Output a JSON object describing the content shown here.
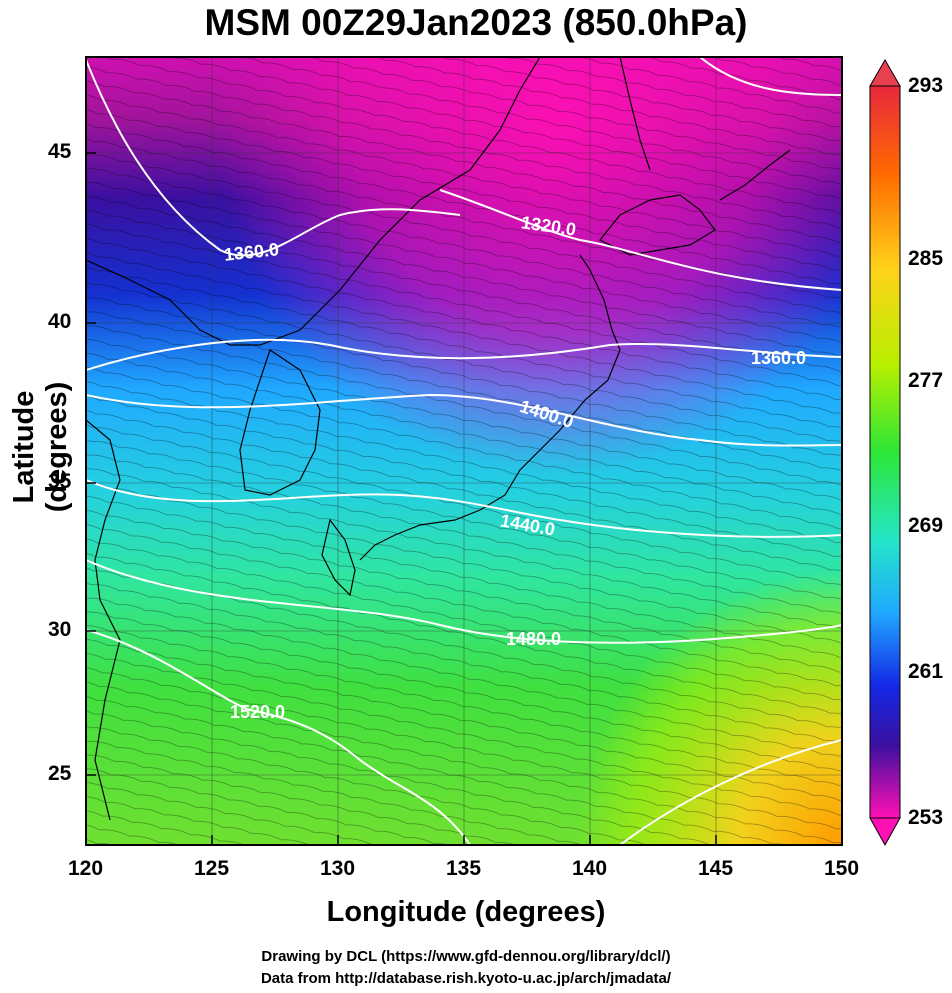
{
  "title": "MSM 00Z29Jan2023 (850.0hPa)",
  "xlabel": "Longitude (degrees)",
  "ylabel": "Latitude  (degrees)",
  "credits": [
    "Drawing by DCL (https://www.gfd-dennou.org/library/dcl/)",
    "Data from http://database.rish.kyoto-u.ac.jp/arch/jmadata/"
  ],
  "x_ticks": [
    "120",
    "125",
    "130",
    "135",
    "140",
    "145",
    "150"
  ],
  "y_ticks": [
    "45",
    "40",
    "35",
    "30",
    "25"
  ],
  "colorbar": {
    "ticks": [
      "293",
      "285",
      "277",
      "269",
      "261",
      "253"
    ],
    "colors_top_to_bottom": [
      "#e8283c",
      "#ff6a00",
      "#ffd21a",
      "#b8f000",
      "#2de636",
      "#25e6c8",
      "#20a8ff",
      "#1428e6",
      "#3a10a0",
      "#a0149c",
      "#ff10b4"
    ]
  },
  "contours": [
    {
      "label": "1320.0"
    },
    {
      "label": "1360.0"
    },
    {
      "label": "1360.0"
    },
    {
      "label": "1400.0"
    },
    {
      "label": "1440.0"
    },
    {
      "label": "1480.0"
    },
    {
      "label": "1520.0"
    }
  ],
  "map": {
    "region": "East Asia / Japan",
    "lon_range": [
      120,
      150
    ],
    "lat_range": [
      22.5,
      48
    ],
    "field": "temperature (K) shaded, geopotential height contours, wind streamlines"
  }
}
